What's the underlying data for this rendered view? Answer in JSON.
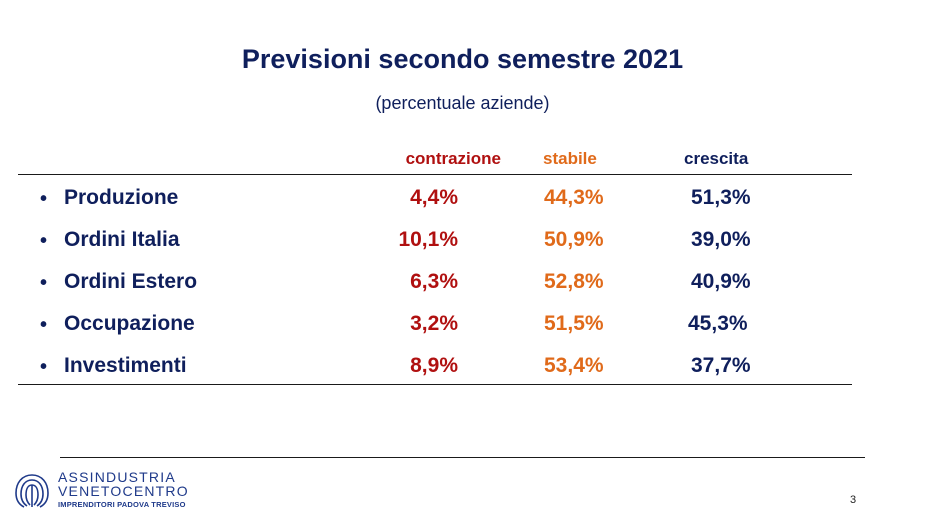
{
  "slide": {
    "title": "Previsioni secondo semestre 2021",
    "subtitle": "(percentuale aziende)",
    "page_number": "3"
  },
  "table": {
    "headers": [
      "contrazione",
      "stabile",
      "crescita"
    ],
    "rows": [
      {
        "label": "Produzione",
        "contrazione": "4,4%",
        "stabile": "44,3%",
        "crescita": "51,3%"
      },
      {
        "label": "Ordini Italia",
        "contrazione": "10,1%",
        "stabile": "50,9%",
        "crescita": "39,0%"
      },
      {
        "label": "Ordini Estero",
        "contrazione": "6,3%",
        "stabile": "52,8%",
        "crescita": "40,9%"
      },
      {
        "label": "Occupazione",
        "contrazione": "3,2%",
        "stabile": "51,5%",
        "crescita": "45,3%"
      },
      {
        "label": "Investimenti",
        "contrazione": "8,9%",
        "stabile": "53,4%",
        "crescita": "37,7%"
      }
    ]
  },
  "logo": {
    "line1": "ASSINDUSTRIA",
    "line2": "VENETOCENTRO",
    "line3": "IMPRENDITORI PADOVA TREVISO"
  },
  "colors": {
    "title": "#0f1f5c",
    "contrazione": "#b01010",
    "stabile": "#e06a1a",
    "crescita": "#0f1f5c"
  }
}
